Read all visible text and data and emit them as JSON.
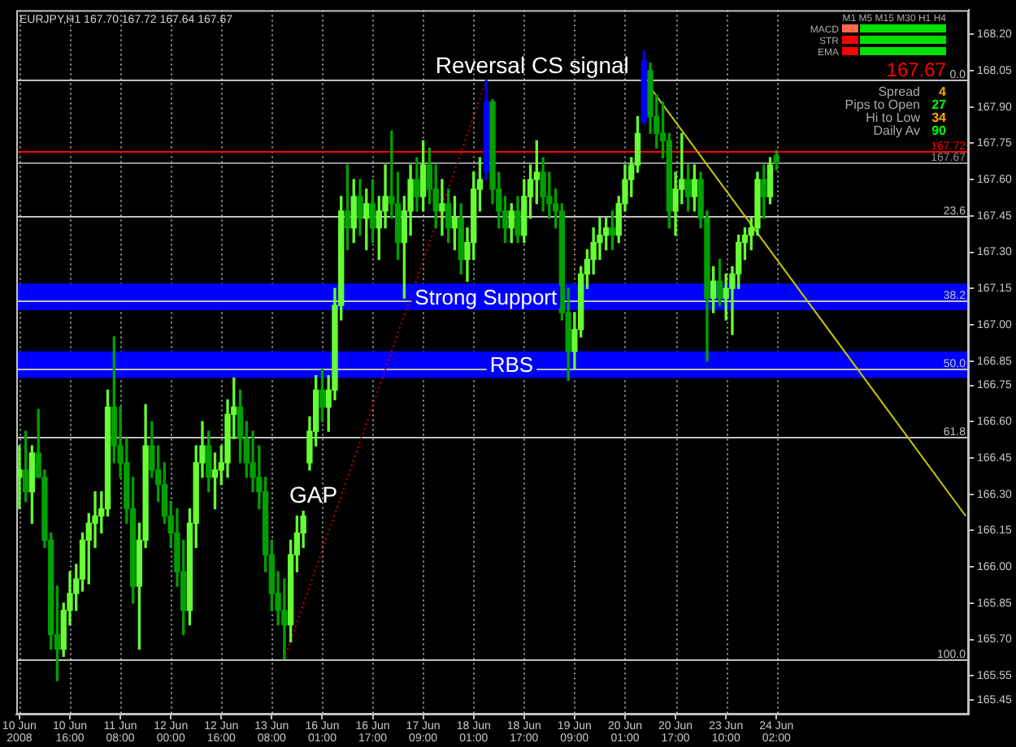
{
  "chart_data": {
    "type": "candlestick",
    "subtitle": "EURJPY,H1 167.70 167.72 167.64 167.67",
    "categories": [
      "10 Jun 2008",
      null,
      null,
      null,
      null,
      null,
      null,
      null,
      "10 Jun 16:00",
      null,
      null,
      null,
      null,
      null,
      null,
      null,
      "11 Jun 08:00",
      null,
      null,
      null,
      null,
      null,
      null,
      null,
      "12 Jun 00:00",
      null,
      null,
      null,
      null,
      null,
      null,
      null,
      "12 Jun 16:00",
      null,
      null,
      null,
      null,
      null,
      null,
      null,
      "13 Jun 08:00",
      null,
      null,
      null,
      null,
      null,
      null,
      null,
      "16 Jun 01:00",
      null,
      null,
      null,
      null,
      null,
      null,
      null,
      "16 Jun 17:00",
      null,
      null,
      null,
      null,
      null,
      null,
      null,
      "17 Jun 09:00",
      null,
      null,
      null,
      null,
      null,
      null,
      null,
      "18 Jun 01:00",
      null,
      null,
      null,
      null,
      null,
      null,
      null,
      "18 Jun 17:00",
      null,
      null,
      null,
      null,
      null,
      null,
      null,
      "19 Jun 09:00",
      null,
      null,
      null,
      null,
      null,
      null,
      null,
      "20 Jun 01:00",
      null,
      null,
      null,
      null,
      null,
      null,
      null,
      "20 Jun 17:00",
      null,
      null,
      null,
      null,
      null,
      null,
      null,
      "23 Jun 10:00",
      null,
      null,
      null,
      null,
      null,
      null,
      null,
      "24 Jun 02:00",
      null,
      null,
      null,
      null,
      null,
      null,
      null,
      null,
      null,
      null,
      null,
      null,
      null,
      null,
      null,
      null,
      null,
      null,
      null,
      null,
      null,
      null,
      null,
      null,
      null,
      null,
      null,
      null,
      null,
      null
    ],
    "ohlc": [
      [
        166.37,
        166.5,
        166.24,
        166.4
      ],
      [
        166.4,
        166.56,
        166.27,
        166.31
      ],
      [
        166.31,
        166.5,
        166.18,
        166.47
      ],
      [
        166.47,
        166.65,
        166.37,
        166.37
      ],
      [
        166.37,
        166.4,
        166.08,
        166.11
      ],
      [
        166.11,
        166.14,
        165.66,
        165.72
      ],
      [
        165.72,
        165.92,
        165.53,
        165.66
      ],
      [
        165.66,
        165.85,
        165.63,
        165.82
      ],
      [
        165.82,
        165.98,
        165.76,
        165.89
      ],
      [
        165.89,
        166.01,
        165.82,
        165.95
      ],
      [
        165.95,
        166.14,
        165.9,
        166.11
      ],
      [
        166.11,
        166.22,
        165.93,
        166.18
      ],
      [
        166.18,
        166.31,
        166.08,
        166.21
      ],
      [
        166.21,
        166.31,
        166.14,
        166.24
      ],
      [
        166.24,
        166.73,
        166.21,
        166.66
      ],
      [
        166.66,
        166.95,
        166.43,
        166.5
      ],
      [
        166.5,
        166.66,
        166.37,
        166.43
      ],
      [
        166.43,
        166.53,
        166.18,
        166.24
      ],
      [
        166.24,
        166.37,
        165.85,
        165.92
      ],
      [
        165.92,
        166.18,
        165.66,
        166.11
      ],
      [
        166.11,
        166.67,
        166.08,
        166.5
      ],
      [
        166.5,
        166.6,
        166.37,
        166.4
      ],
      [
        166.4,
        166.5,
        166.27,
        166.34
      ],
      [
        166.34,
        166.43,
        166.18,
        166.21
      ],
      [
        166.21,
        166.27,
        166.08,
        166.14
      ],
      [
        166.14,
        166.24,
        165.92,
        165.98
      ],
      [
        165.98,
        166.11,
        165.72,
        165.82
      ],
      [
        165.82,
        166.24,
        165.76,
        166.18
      ],
      [
        166.18,
        166.5,
        166.08,
        166.43
      ],
      [
        166.43,
        166.6,
        166.37,
        166.5
      ],
      [
        166.5,
        166.56,
        166.31,
        166.37
      ],
      [
        166.37,
        166.47,
        166.24,
        166.4
      ],
      [
        166.4,
        166.5,
        166.34,
        166.43
      ],
      [
        166.43,
        166.69,
        166.37,
        166.63
      ],
      [
        166.63,
        166.78,
        166.53,
        166.66
      ],
      [
        166.66,
        166.73,
        166.43,
        166.53
      ],
      [
        166.53,
        166.6,
        166.37,
        166.43
      ],
      [
        166.43,
        166.56,
        166.31,
        166.37
      ],
      [
        166.37,
        166.5,
        166.24,
        166.31
      ],
      [
        166.31,
        166.37,
        165.98,
        166.05
      ],
      [
        166.05,
        166.11,
        165.82,
        165.89
      ],
      [
        165.89,
        165.98,
        165.76,
        165.82
      ],
      [
        165.82,
        165.95,
        165.62,
        165.76
      ],
      [
        165.76,
        166.11,
        165.69,
        166.05
      ],
      [
        166.05,
        166.21,
        165.98,
        166.14
      ],
      [
        166.14,
        166.23,
        166.08,
        166.21
      ],
      [
        166.43,
        166.62,
        166.4,
        166.56
      ],
      [
        166.56,
        166.79,
        166.5,
        166.73
      ],
      [
        166.73,
        166.82,
        166.6,
        166.66
      ],
      [
        166.66,
        166.79,
        166.56,
        166.73
      ],
      [
        166.73,
        167.15,
        166.69,
        167.08
      ],
      [
        167.08,
        167.53,
        167.02,
        167.47
      ],
      [
        167.47,
        167.66,
        167.31,
        167.4
      ],
      [
        167.4,
        167.6,
        167.34,
        167.53
      ],
      [
        167.53,
        167.6,
        167.37,
        167.44
      ],
      [
        167.44,
        167.56,
        167.31,
        167.5
      ],
      [
        167.5,
        167.6,
        167.34,
        167.4
      ],
      [
        167.4,
        167.53,
        167.27,
        167.47
      ],
      [
        167.47,
        167.66,
        167.4,
        167.53
      ],
      [
        167.53,
        167.8,
        167.44,
        167.5
      ],
      [
        167.5,
        167.63,
        167.27,
        167.34
      ],
      [
        167.34,
        167.53,
        167.11,
        167.47
      ],
      [
        167.47,
        167.66,
        167.37,
        167.6
      ],
      [
        167.6,
        167.69,
        167.47,
        167.53
      ],
      [
        167.53,
        167.76,
        167.47,
        167.66
      ],
      [
        167.66,
        167.73,
        167.5,
        167.56
      ],
      [
        167.56,
        167.66,
        167.4,
        167.47
      ],
      [
        167.47,
        167.6,
        167.37,
        167.5
      ],
      [
        167.5,
        167.56,
        167.34,
        167.4
      ],
      [
        167.4,
        167.53,
        167.31,
        167.44
      ],
      [
        167.44,
        167.5,
        167.21,
        167.27
      ],
      [
        167.27,
        167.4,
        167.18,
        167.34
      ],
      [
        167.34,
        167.63,
        167.27,
        167.56
      ],
      [
        167.56,
        167.69,
        167.47,
        167.6
      ],
      [
        167.63,
        168.01,
        167.6,
        167.92
      ],
      [
        167.92,
        167.93,
        167.5,
        167.56
      ],
      [
        167.56,
        167.63,
        167.4,
        167.47
      ],
      [
        167.47,
        167.53,
        167.34,
        167.4
      ],
      [
        167.4,
        167.5,
        167.34,
        167.47
      ],
      [
        167.47,
        167.53,
        167.34,
        167.37
      ],
      [
        167.37,
        167.6,
        167.34,
        167.53
      ],
      [
        167.53,
        167.66,
        167.44,
        167.6
      ],
      [
        167.6,
        167.76,
        167.5,
        167.63
      ],
      [
        167.63,
        167.69,
        167.47,
        167.53
      ],
      [
        167.53,
        167.63,
        167.44,
        167.5
      ],
      [
        167.5,
        167.56,
        167.4,
        167.47
      ],
      [
        167.47,
        167.5,
        167.02,
        167.05
      ],
      [
        167.05,
        167.15,
        166.77,
        166.89
      ],
      [
        166.89,
        167.05,
        166.82,
        166.98
      ],
      [
        166.98,
        167.24,
        166.95,
        167.21
      ],
      [
        167.21,
        167.31,
        167.15,
        167.27
      ],
      [
        167.27,
        167.4,
        167.21,
        167.34
      ],
      [
        167.34,
        167.44,
        167.27,
        167.37
      ],
      [
        167.37,
        167.44,
        167.31,
        167.4
      ],
      [
        167.4,
        167.47,
        167.31,
        167.37
      ],
      [
        167.37,
        167.53,
        167.34,
        167.5
      ],
      [
        167.5,
        167.66,
        167.47,
        167.6
      ],
      [
        167.6,
        167.69,
        167.53,
        167.66
      ],
      [
        167.66,
        167.86,
        167.63,
        167.79
      ],
      [
        167.84,
        168.13,
        167.83,
        168.09
      ],
      [
        168.05,
        168.08,
        167.79,
        167.86
      ],
      [
        167.86,
        167.95,
        167.73,
        167.79
      ],
      [
        167.79,
        167.92,
        167.69,
        167.76
      ],
      [
        167.76,
        167.79,
        167.4,
        167.47
      ],
      [
        167.47,
        167.63,
        167.37,
        167.56
      ],
      [
        167.56,
        167.79,
        167.5,
        167.6
      ],
      [
        167.6,
        167.66,
        167.47,
        167.53
      ],
      [
        167.53,
        167.66,
        167.47,
        167.6
      ],
      [
        167.6,
        167.63,
        167.4,
        167.44
      ],
      [
        167.44,
        167.47,
        166.85,
        167.11
      ],
      [
        167.11,
        167.24,
        167.05,
        167.18
      ],
      [
        167.18,
        167.27,
        167.08,
        167.11
      ],
      [
        167.11,
        167.21,
        167.02,
        167.15
      ],
      [
        167.15,
        167.24,
        166.96,
        167.21
      ],
      [
        167.21,
        167.37,
        167.15,
        167.34
      ],
      [
        167.34,
        167.4,
        167.27,
        167.37
      ],
      [
        167.37,
        167.44,
        167.31,
        167.4
      ],
      [
        167.4,
        167.63,
        167.37,
        167.6
      ],
      [
        167.6,
        167.66,
        167.44,
        167.53
      ],
      [
        167.53,
        167.69,
        167.5,
        167.66
      ],
      [
        167.7,
        167.72,
        167.64,
        167.67
      ],
      null,
      null,
      null,
      null,
      null,
      null,
      null,
      null,
      null,
      null,
      null,
      null,
      null,
      null,
      null,
      null,
      null,
      null,
      null,
      null,
      null,
      null,
      null,
      null,
      null,
      null,
      null,
      null,
      null,
      null
    ],
    "colors": [
      "#66ff33",
      "#00a000",
      "#66ff33",
      "#00a000",
      "#00a000",
      "#00a000",
      "#00a000",
      "#66ff33",
      "#66ff33",
      "#66ff33",
      "#66ff33",
      "#66ff33",
      "#66ff33",
      "#66ff33",
      "#66ff33",
      "#00a000",
      "#00a000",
      "#00a000",
      "#00a000",
      "#66ff33",
      "#66ff33",
      "#00a000",
      "#00a000",
      "#00a000",
      "#00a000",
      "#00a000",
      "#00a000",
      "#66ff33",
      "#66ff33",
      "#66ff33",
      "#00a000",
      "#66ff33",
      "#66ff33",
      "#66ff33",
      "#66ff33",
      "#00a000",
      "#00a000",
      "#00a000",
      "#00a000",
      "#00a000",
      "#00a000",
      "#00a000",
      "#00a000",
      "#66ff33",
      "#66ff33",
      "#66ff33",
      "#66ff33",
      "#66ff33",
      "#00a000",
      "#66ff33",
      "#66ff33",
      "#66ff33",
      "#00a000",
      "#66ff33",
      "#00a000",
      "#66ff33",
      "#00a000",
      "#66ff33",
      "#66ff33",
      "#00a000",
      "#00a000",
      "#66ff33",
      "#66ff33",
      "#00a000",
      "#66ff33",
      "#00a000",
      "#00a000",
      "#66ff33",
      "#00a000",
      "#66ff33",
      "#00a000",
      "#66ff33",
      "#66ff33",
      "#66ff33",
      "#0000ff",
      "#00a000",
      "#00a000",
      "#00a000",
      "#66ff33",
      "#00a000",
      "#66ff33",
      "#66ff33",
      "#66ff33",
      "#00a000",
      "#00a000",
      "#00a000",
      "#00a000",
      "#00a000",
      "#66ff33",
      "#66ff33",
      "#66ff33",
      "#66ff33",
      "#66ff33",
      "#66ff33",
      "#00a000",
      "#66ff33",
      "#66ff33",
      "#66ff33",
      "#66ff33",
      "#0000ff",
      "#00a000",
      "#00a000",
      "#00a000",
      "#00a000",
      "#66ff33",
      "#66ff33",
      "#00a000",
      "#66ff33",
      "#00a000",
      "#00a000",
      "#66ff33",
      "#00a000",
      "#66ff33",
      "#66ff33",
      "#66ff33",
      "#66ff33",
      "#66ff33",
      "#66ff33",
      "#00a000",
      "#66ff33",
      "#00a000",
      null,
      null,
      null,
      null,
      null,
      null,
      null,
      null,
      null,
      null,
      null,
      null,
      null,
      null,
      null,
      null,
      null,
      null,
      null,
      null,
      null,
      null,
      null,
      null,
      null,
      null,
      null,
      null,
      null,
      null
    ],
    "series": [
      {
        "type": "line",
        "color": "#cc0000",
        "line_style": "dotted",
        "values": [
          null,
          null,
          null,
          null,
          null,
          null,
          null,
          null,
          null,
          null,
          null,
          null,
          null,
          null,
          null,
          null,
          null,
          null,
          null,
          null,
          null,
          null,
          null,
          null,
          null,
          null,
          null,
          null,
          null,
          null,
          null,
          null,
          null,
          null,
          null,
          null,
          null,
          null,
          null,
          null,
          null,
          null,
          165.62,
          null,
          null,
          null,
          null,
          null,
          null,
          null,
          null,
          null,
          null,
          null,
          null,
          null,
          null,
          null,
          null,
          null,
          null,
          null,
          null,
          null,
          null,
          null,
          null,
          null,
          null,
          null,
          null,
          null,
          null,
          null,
          168.01,
          null,
          null,
          null,
          null,
          null,
          null,
          null,
          null,
          null,
          null,
          null,
          null,
          null,
          null,
          null,
          null,
          null,
          null,
          null,
          null,
          null,
          null,
          null,
          null,
          null,
          null,
          null,
          null,
          null,
          null,
          null,
          null,
          null,
          null,
          null,
          null,
          null,
          null,
          null,
          null,
          null,
          null,
          null,
          null,
          null,
          null,
          null,
          null,
          null,
          null,
          null,
          null,
          null,
          null,
          null,
          null,
          null,
          null,
          null,
          null,
          null,
          null,
          null,
          null,
          null,
          null,
          null,
          null,
          null,
          null,
          null,
          null,
          null,
          null,
          null,
          null
        ]
      },
      {
        "type": "line",
        "color": "#c8c800",
        "values": [
          null,
          null,
          null,
          null,
          null,
          null,
          null,
          null,
          null,
          null,
          null,
          null,
          null,
          null,
          null,
          null,
          null,
          null,
          null,
          null,
          null,
          null,
          null,
          null,
          null,
          null,
          null,
          null,
          null,
          null,
          null,
          null,
          null,
          null,
          null,
          null,
          null,
          null,
          null,
          null,
          null,
          null,
          null,
          null,
          null,
          null,
          null,
          null,
          null,
          null,
          null,
          null,
          null,
          null,
          null,
          null,
          null,
          null,
          null,
          null,
          null,
          null,
          null,
          null,
          null,
          null,
          null,
          null,
          null,
          null,
          null,
          null,
          null,
          null,
          null,
          null,
          null,
          null,
          null,
          null,
          null,
          null,
          null,
          null,
          null,
          null,
          null,
          null,
          null,
          null,
          null,
          null,
          null,
          null,
          null,
          null,
          null,
          null,
          null,
          null,
          167.98,
          null,
          null,
          null,
          null,
          null,
          null,
          null,
          null,
          null,
          null,
          null,
          null,
          null,
          null,
          null,
          null,
          null,
          null,
          null,
          null,
          null,
          null,
          null,
          null,
          null,
          null,
          null,
          null,
          null,
          null,
          null,
          null,
          null,
          null,
          null,
          null,
          null,
          null,
          null,
          null,
          null,
          null,
          null,
          null,
          null,
          null,
          null,
          null,
          null,
          166.21
        ]
      }
    ],
    "ylim": [
      165.39,
      168.3
    ],
    "yticks": [
      {
        "value": 168.2,
        "label": "168.20"
      },
      168.05,
      {
        "value": 167.9,
        "label": "167.90"
      },
      167.75,
      {
        "value": 167.6,
        "label": "167.60"
      },
      167.45,
      {
        "value": 167.3,
        "label": "167.30"
      },
      167.15,
      {
        "value": 167,
        "label": "167.00"
      },
      166.85,
      166.75,
      {
        "value": 166.6,
        "label": "166.60"
      },
      166.45,
      {
        "value": 166.3,
        "label": "166.30"
      },
      166.15,
      {
        "value": 166,
        "label": "166.00"
      },
      165.85,
      {
        "value": 165.7,
        "label": "165.70"
      },
      165.55,
      165.45
    ],
    "grid": "x",
    "ref_lines": [
      {
        "axis": "y",
        "value": 168.01,
        "color": "#c0c0c0"
      },
      {
        "axis": "y",
        "value": 167.45,
        "color": "#c0c0c0"
      },
      {
        "axis": "y",
        "value": 167.1,
        "color": "#c0c0c0"
      },
      {
        "axis": "y",
        "value": 166.82,
        "color": "#c0c0c0"
      },
      {
        "axis": "y",
        "value": 166.54,
        "color": "#c0c0c0"
      },
      {
        "axis": "y",
        "value": 165.62,
        "color": "#c0c0c0"
      },
      {
        "axis": "y",
        "value": 167.72,
        "label": "167.72",
        "color": "#ff0000"
      },
      {
        "axis": "y",
        "value": 167.67,
        "label": "167.67",
        "color": "#909090"
      }
    ],
    "bands": [
      {
        "axis": "y",
        "from": 167.06,
        "to": 167.17,
        "label": "Strong Support",
        "color": "#0000ff"
      },
      {
        "axis": "y",
        "from": 166.78,
        "to": 166.89,
        "label": "RBS",
        "color": "#0000ff"
      }
    ],
    "annotations": [
      "Reversal CS signal",
      "GAP",
      "M1 M5 M15 M30 H1 H4",
      "MACD",
      "STR",
      "EMA",
      "167.67",
      "Spread",
      "4",
      "Pips to Open",
      "27",
      "Hi to Low",
      "34",
      "Daily Av",
      "90",
      {
        "text": "0.0",
        "y": 168.01
      },
      {
        "text": "23.6",
        "y": 167.45
      },
      {
        "text": "38.2",
        "y": 167.1
      },
      {
        "text": "50.0",
        "y": 166.82
      },
      {
        "text": "61.8",
        "y": 166.54
      },
      {
        "text": "100.0",
        "y": 165.62
      }
    ]
  }
}
